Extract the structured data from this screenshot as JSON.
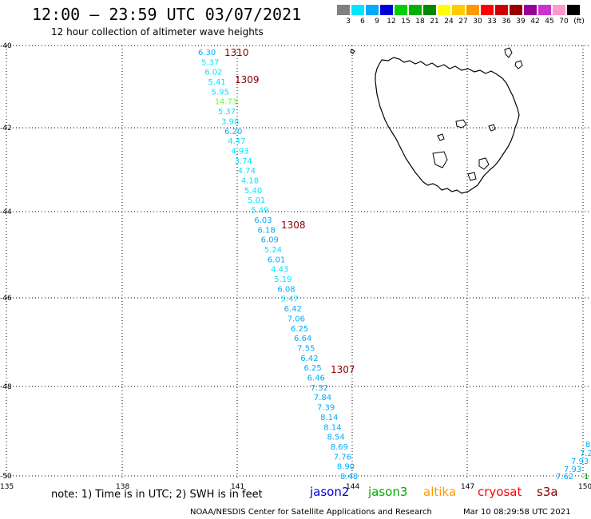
{
  "header": {
    "title": "12:00 – 23:59 UTC 03/07/2021",
    "subtitle": "12 hour collection of altimeter wave heights"
  },
  "legend": {
    "unit": "(ft)",
    "bins": [
      {
        "label": "3",
        "color": "#808080"
      },
      {
        "label": "6",
        "color": "#00e5ff"
      },
      {
        "label": "9",
        "color": "#00aaff"
      },
      {
        "label": "12",
        "color": "#0000dd"
      },
      {
        "label": "15",
        "color": "#00d000"
      },
      {
        "label": "18",
        "color": "#00b000"
      },
      {
        "label": "21",
        "color": "#008800"
      },
      {
        "label": "24",
        "color": "#ffff00"
      },
      {
        "label": "27",
        "color": "#ffcc00"
      },
      {
        "label": "30",
        "color": "#ff9900"
      },
      {
        "label": "33",
        "color": "#ff0000"
      },
      {
        "label": "36",
        "color": "#cc0000"
      },
      {
        "label": "39",
        "color": "#990000"
      },
      {
        "label": "42",
        "color": "#990099"
      },
      {
        "label": "45",
        "color": "#cc33cc"
      },
      {
        "label": "70",
        "color": "#ff99cc"
      },
      {
        "label": "",
        "color": "#000000"
      }
    ]
  },
  "axes": {
    "lat_labels": [
      "-40",
      "-42",
      "-44",
      "-46",
      "-48",
      "-50"
    ],
    "lon_labels": [
      "135",
      "138",
      "141",
      "144",
      "147",
      "150"
    ]
  },
  "track_main": {
    "values": [
      {
        "text": "6.30",
        "color": "#00aaff"
      },
      {
        "text": "5.37",
        "color": "#00e5ff"
      },
      {
        "text": "6.02",
        "color": "#00e5ff"
      },
      {
        "text": "5.41",
        "color": "#00e5ff"
      },
      {
        "text": "5.95",
        "color": "#00e5ff"
      },
      {
        "text": "14.73",
        "color": "#66ff33"
      },
      {
        "text": "5.37",
        "color": "#00e5ff"
      },
      {
        "text": "3.98",
        "color": "#00e5ff"
      },
      {
        "text": "6.20",
        "color": "#00aaff"
      },
      {
        "text": "4.47",
        "color": "#00e5ff"
      },
      {
        "text": "4.93",
        "color": "#00e5ff"
      },
      {
        "text": "3.74",
        "color": "#00e5ff"
      },
      {
        "text": "4.74",
        "color": "#00e5ff"
      },
      {
        "text": "4.18",
        "color": "#00e5ff"
      },
      {
        "text": "5.40",
        "color": "#00e5ff"
      },
      {
        "text": "5.01",
        "color": "#00e5ff"
      },
      {
        "text": "5.49",
        "color": "#00e5ff"
      },
      {
        "text": "6.03",
        "color": "#00aaff"
      },
      {
        "text": "6.18",
        "color": "#00aaff"
      },
      {
        "text": "6.09",
        "color": "#00aaff"
      },
      {
        "text": "5.24",
        "color": "#00e5ff"
      },
      {
        "text": "6.01",
        "color": "#00aaff"
      },
      {
        "text": "4.43",
        "color": "#00e5ff"
      },
      {
        "text": "5.19",
        "color": "#00e5ff"
      },
      {
        "text": "6.08",
        "color": "#00aaff"
      },
      {
        "text": "5.47",
        "color": "#00e5ff"
      },
      {
        "text": "6.42",
        "color": "#00aaff"
      },
      {
        "text": "7.06",
        "color": "#00aaff"
      },
      {
        "text": "6.25",
        "color": "#00aaff"
      },
      {
        "text": "6.64",
        "color": "#00aaff"
      },
      {
        "text": "7.55",
        "color": "#00aaff"
      },
      {
        "text": "6.42",
        "color": "#00aaff"
      },
      {
        "text": "6.25",
        "color": "#00aaff"
      },
      {
        "text": "6.46",
        "color": "#00aaff"
      },
      {
        "text": "7.32",
        "color": "#00aaff"
      },
      {
        "text": "7.84",
        "color": "#00aaff"
      },
      {
        "text": "7.39",
        "color": "#00aaff"
      },
      {
        "text": "8.14",
        "color": "#00aaff"
      },
      {
        "text": "8.14",
        "color": "#00aaff"
      },
      {
        "text": "8.54",
        "color": "#00aaff"
      },
      {
        "text": "8.69",
        "color": "#00aaff"
      },
      {
        "text": "7.76",
        "color": "#00aaff"
      },
      {
        "text": "8.90",
        "color": "#00aaff"
      },
      {
        "text": "8.48",
        "color": "#00aaff"
      }
    ]
  },
  "track_right": {
    "values": [
      {
        "text": "8",
        "color": "#00aaff"
      },
      {
        "text": "7.2",
        "color": "#00aaff"
      },
      {
        "text": "7.93",
        "color": "#00aaff"
      },
      {
        "text": "7.93",
        "color": "#00aaff"
      },
      {
        "text": "7.62",
        "color": "#00aaff"
      },
      {
        "text": "1",
        "color": "#008800"
      }
    ]
  },
  "time_labels": [
    {
      "text": "1310",
      "color": "#8b0000"
    },
    {
      "text": "1309",
      "color": "#8b0000"
    },
    {
      "text": "1308",
      "color": "#8b0000"
    },
    {
      "text": "1307",
      "color": "#8b0000"
    }
  ],
  "footer": {
    "note": "note: 1) Time is in UTC; 2) SWH is in feet",
    "satellites": [
      {
        "name": "jason2",
        "color": "#0000dd"
      },
      {
        "name": "jason3",
        "color": "#00aa00"
      },
      {
        "name": "altika",
        "color": "#ff9900"
      },
      {
        "name": "cryosat",
        "color": "#ff0000"
      },
      {
        "name": "s3a",
        "color": "#8b0000"
      }
    ],
    "credit": "NOAA/NESDIS Center for Satellite Applications and Research",
    "timestamp": "Mar 10 08:29:58 UTC 2021"
  }
}
